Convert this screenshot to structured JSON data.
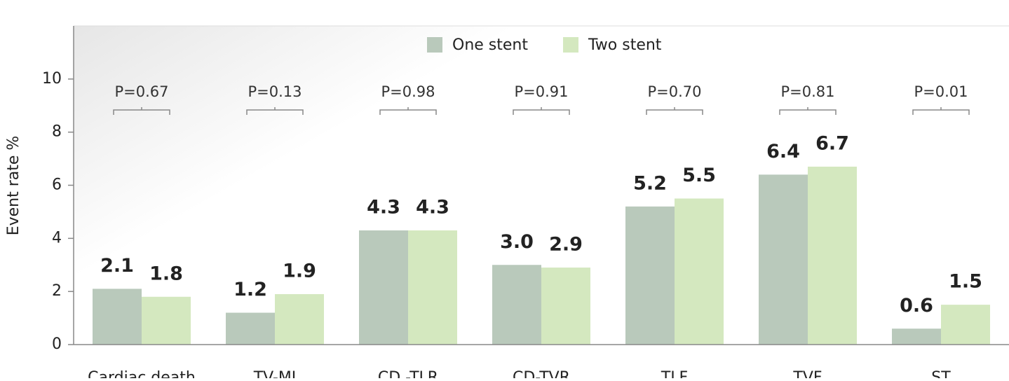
{
  "chart_data": {
    "type": "bar",
    "y_label": "Event rate %",
    "categories": [
      "Cardiac death",
      "TV-MI",
      "CD -TLR",
      "CD-TVR",
      "TLF",
      "TVF",
      "ST"
    ],
    "series": [
      {
        "name": "One stent",
        "color": "#b9c9bb",
        "values": [
          2.1,
          1.2,
          4.3,
          3.0,
          5.2,
          6.4,
          0.6
        ],
        "value_labels": [
          "2.1",
          "1.2",
          "4.3",
          "3.0",
          "5.2",
          "6.4",
          "0.6"
        ]
      },
      {
        "name": "Two stent",
        "color": "#d4e8bf",
        "values": [
          1.8,
          1.9,
          4.3,
          2.9,
          5.5,
          6.7,
          1.5
        ],
        "value_labels": [
          "1.8",
          "1.9",
          "4.3",
          "2.9",
          "5.5",
          "6.7",
          "1.5"
        ]
      }
    ],
    "annotations": [
      "P=0.67",
      "P=0.13",
      "P=0.98",
      "P=0.91",
      "P=0.70",
      "P=0.81",
      "P=0.01"
    ],
    "ylim": [
      0,
      12
    ],
    "yticks": [
      0,
      2,
      4,
      6,
      8,
      10
    ],
    "legend": "top"
  }
}
